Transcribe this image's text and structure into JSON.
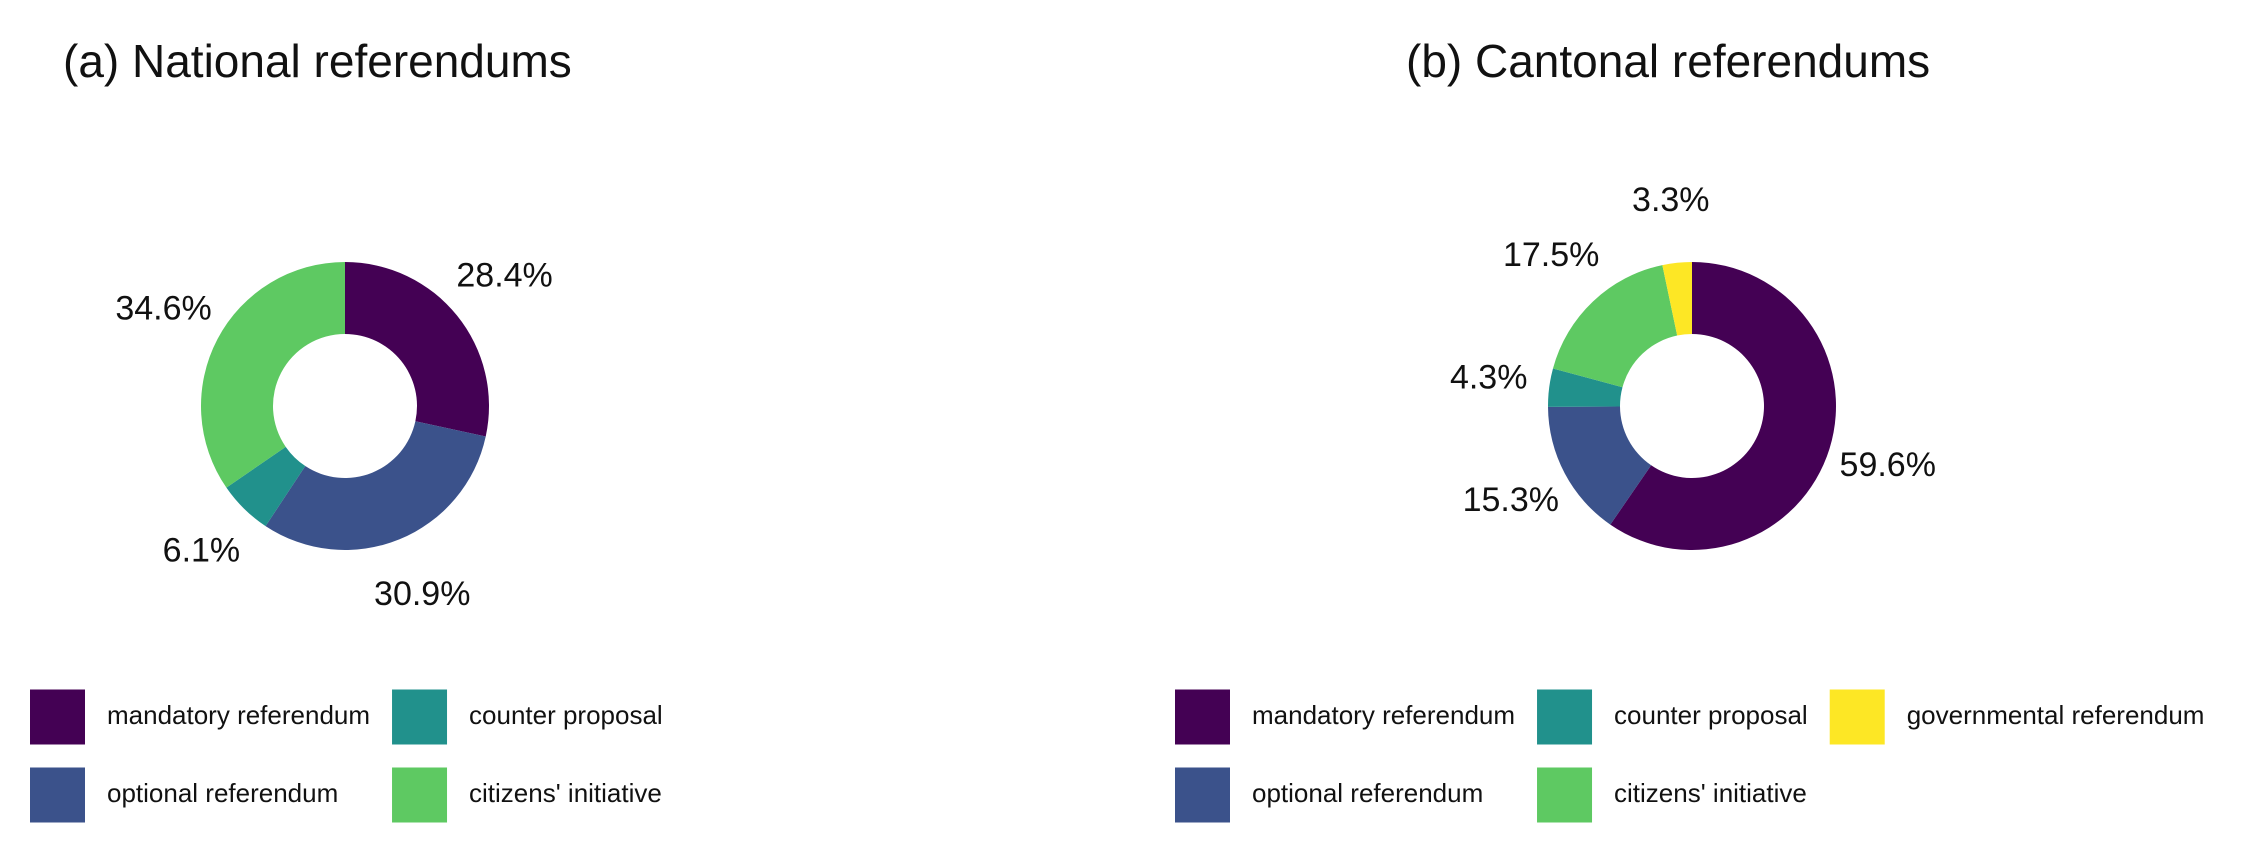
{
  "chart_data": [
    {
      "type": "donut",
      "title": "(a) National referendums",
      "categories": [
        "mandatory referendum",
        "optional referendum",
        "counter proposal",
        "citizens' initiative"
      ],
      "values": [
        28.4,
        30.9,
        6.1,
        34.6
      ],
      "value_labels": [
        "28.4%",
        "30.9%",
        "6.1%",
        "34.6%"
      ],
      "colors": [
        "#440154",
        "#3b528b",
        "#21918c",
        "#5ec962"
      ],
      "legend": "bottom"
    },
    {
      "type": "donut",
      "title": "(b) Cantonal referendums",
      "categories": [
        "mandatory referendum",
        "optional referendum",
        "counter proposal",
        "citizens' initiative",
        "governmental referendum"
      ],
      "values": [
        59.6,
        15.3,
        4.3,
        17.5,
        3.3
      ],
      "value_labels": [
        "59.6%",
        "15.3%",
        "4.3%",
        "17.5%",
        "3.3%"
      ],
      "colors": [
        "#440154",
        "#3b528b",
        "#21918c",
        "#5ec962",
        "#fde725"
      ],
      "legend": "bottom"
    }
  ]
}
